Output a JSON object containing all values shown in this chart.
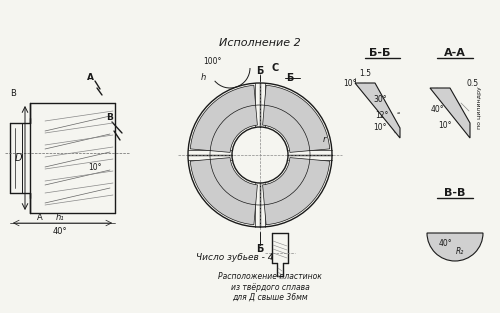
{
  "bg_color": "#f5f5f0",
  "line_color": "#1a1a1a",
  "hatch_color": "#1a1a1a",
  "title": "Исполнение 2",
  "label_bb": "Б-Б",
  "label_aa": "А-А",
  "label_vv": "В-В",
  "text_zubiev": "Число зубьев - 4",
  "text_raspolozhenie": "Расположение пластинок\nиз твёрдого сплава\nдля Д свыше 36мм",
  "angle_100": "100°",
  "angle_10_1": "10°",
  "angle_10_2": "10°",
  "angle_12": "12°",
  "angle_30": "30°",
  "angle_40_left": "40°",
  "angle_40_right": "40°",
  "dim_15": "1.5",
  "dim_05": "0.5",
  "label_d": "D",
  "label_r": "r",
  "label_h": "h",
  "label_c": "C",
  "label_b_top": "Б",
  "label_b_bot": "Б",
  "label_a_left": "A",
  "label_b_left": "B",
  "label_a_arrow": "A",
  "label_b_arrow": "B",
  "label_h1": "h₁",
  "label_po_cil": "по цилиндру",
  "label_r2": "R₂"
}
